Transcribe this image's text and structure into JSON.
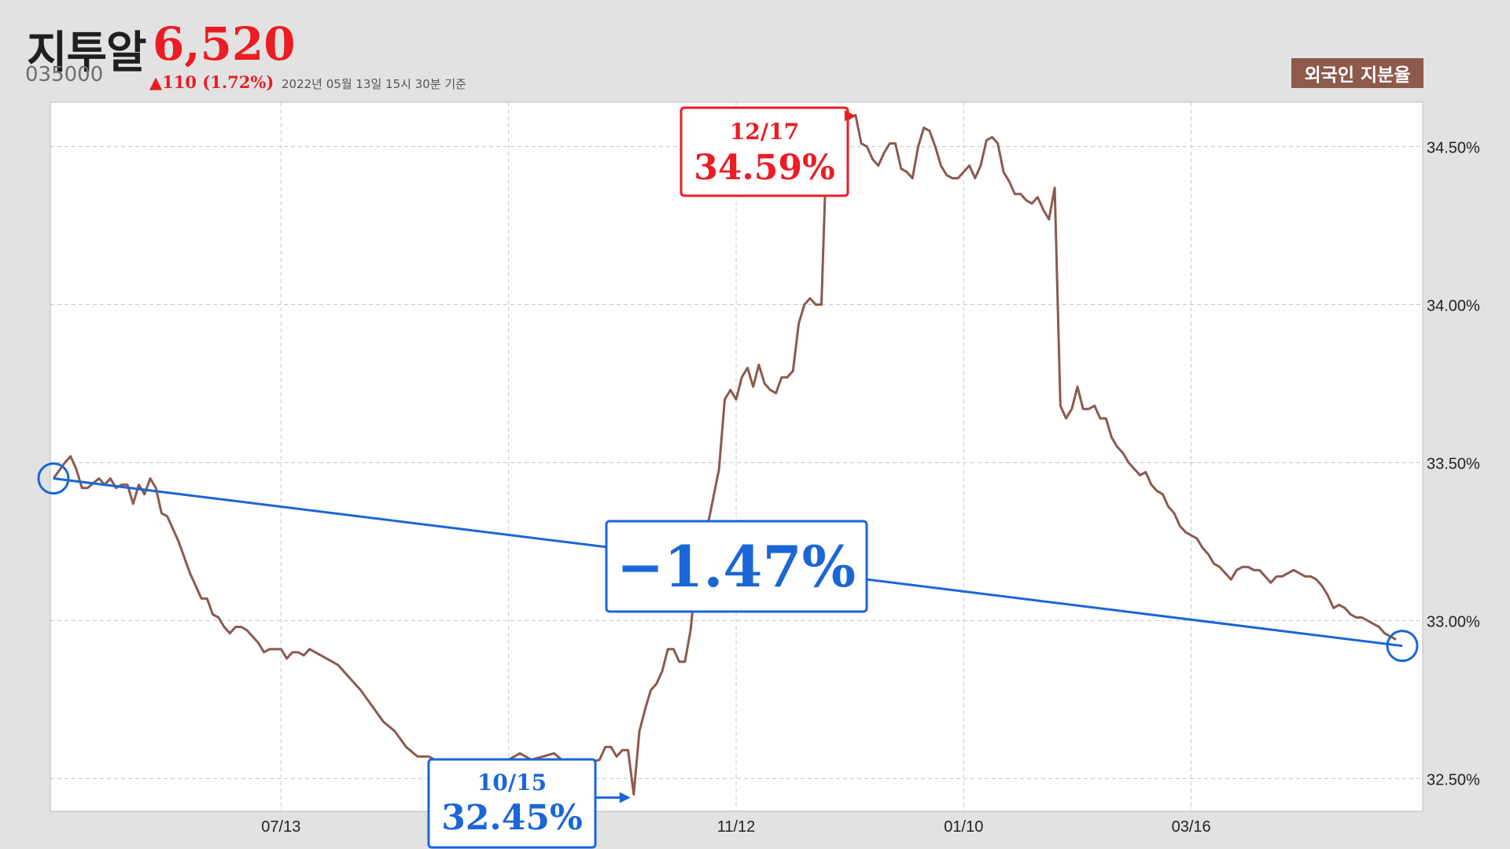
{
  "header": {
    "name": "지투알",
    "price": "6,520",
    "code": "035000",
    "change": "▲110 (1.72%)",
    "date": "2022년 05월 13일 15시 30분 기준",
    "badge": "외국인 지분율"
  },
  "colors": {
    "line": "#8b5a4e",
    "low": "#1a66d6",
    "high": "#ec1c24",
    "grid": "#c8c8c8"
  },
  "annotations": {
    "low": {
      "date": "10/15",
      "value": "32.45%"
    },
    "high": {
      "date": "12/17",
      "value": "34.59%"
    },
    "change": "−1.47%"
  },
  "chart_data": {
    "type": "line",
    "title": "외국인 지분율",
    "x_tick_labels": [
      "07/13",
      "11/12",
      "01/10",
      "03/16"
    ],
    "y_tick_labels": [
      "34.50%",
      "34.00%",
      "33.50%",
      "33.00%",
      "32.50%"
    ],
    "y_ticks": [
      34.5,
      34.0,
      33.5,
      33.0,
      32.5
    ],
    "ylim": [
      32.4,
      34.64
    ],
    "n_points": 241,
    "grid": true,
    "series": [
      {
        "values": [
          [
            0,
            33.45
          ],
          [
            2,
            33.5
          ],
          [
            3,
            33.52
          ],
          [
            4,
            33.48
          ],
          [
            5,
            33.42
          ],
          [
            6,
            33.42
          ],
          [
            8,
            33.45
          ],
          [
            9,
            33.43
          ],
          [
            10,
            33.45
          ],
          [
            11,
            33.42
          ],
          [
            12,
            33.43
          ],
          [
            13,
            33.43
          ],
          [
            14,
            33.37
          ],
          [
            15,
            33.43
          ],
          [
            16,
            33.4
          ],
          [
            17,
            33.45
          ],
          [
            18,
            33.42
          ],
          [
            19,
            33.34
          ],
          [
            20,
            33.33
          ],
          [
            22,
            33.25
          ],
          [
            24,
            33.15
          ],
          [
            26,
            33.07
          ],
          [
            27,
            33.07
          ],
          [
            28,
            33.02
          ],
          [
            29,
            33.01
          ],
          [
            30,
            32.98
          ],
          [
            31,
            32.96
          ],
          [
            32,
            32.98
          ],
          [
            33,
            32.98
          ],
          [
            34,
            32.97
          ],
          [
            35,
            32.95
          ],
          [
            36,
            32.93
          ],
          [
            37,
            32.9
          ],
          [
            38,
            32.91
          ],
          [
            40,
            32.91
          ],
          [
            41,
            32.88
          ],
          [
            42,
            32.9
          ],
          [
            43,
            32.9
          ],
          [
            44,
            32.89
          ],
          [
            45,
            32.91
          ],
          [
            46,
            32.9
          ],
          [
            48,
            32.88
          ],
          [
            50,
            32.86
          ],
          [
            52,
            32.82
          ],
          [
            54,
            32.78
          ],
          [
            56,
            32.73
          ],
          [
            58,
            32.68
          ],
          [
            60,
            32.65
          ],
          [
            62,
            32.6
          ],
          [
            64,
            32.57
          ],
          [
            66,
            32.57
          ],
          [
            68,
            32.55
          ],
          [
            70,
            32.54
          ],
          [
            72,
            32.54
          ],
          [
            74,
            32.55
          ],
          [
            76,
            32.56
          ],
          [
            78,
            32.56
          ],
          [
            80,
            32.56
          ],
          [
            82,
            32.58
          ],
          [
            84,
            32.56
          ],
          [
            86,
            32.57
          ],
          [
            88,
            32.58
          ],
          [
            90,
            32.55
          ],
          [
            92,
            32.54
          ],
          [
            94,
            32.55
          ],
          [
            96,
            32.56
          ],
          [
            97,
            32.6
          ],
          [
            98,
            32.6
          ],
          [
            99,
            32.57
          ],
          [
            100,
            32.59
          ],
          [
            101,
            32.59
          ],
          [
            102,
            32.45
          ],
          [
            103,
            32.65
          ],
          [
            104,
            32.72
          ],
          [
            105,
            32.78
          ],
          [
            106,
            32.8
          ],
          [
            107,
            32.84
          ],
          [
            108,
            32.91
          ],
          [
            109,
            32.91
          ],
          [
            110,
            32.87
          ],
          [
            111,
            32.87
          ],
          [
            112,
            32.97
          ],
          [
            113,
            33.15
          ],
          [
            115,
            33.3
          ],
          [
            117,
            33.48
          ],
          [
            118,
            33.7
          ],
          [
            119,
            33.73
          ],
          [
            120,
            33.7
          ],
          [
            121,
            33.77
          ],
          [
            122,
            33.8
          ],
          [
            123,
            33.74
          ],
          [
            124,
            33.81
          ],
          [
            125,
            33.75
          ],
          [
            126,
            33.73
          ],
          [
            127,
            33.72
          ],
          [
            128,
            33.77
          ],
          [
            129,
            33.77
          ],
          [
            130,
            33.79
          ],
          [
            131,
            33.94
          ],
          [
            132,
            34.0
          ],
          [
            133,
            34.02
          ],
          [
            134,
            34.0
          ],
          [
            135,
            34.0
          ],
          [
            136,
            34.55
          ],
          [
            137,
            34.52
          ],
          [
            138,
            34.58
          ],
          [
            139,
            34.58
          ],
          [
            140,
            34.59
          ],
          [
            141,
            34.6
          ],
          [
            142,
            34.51
          ],
          [
            143,
            34.5
          ],
          [
            144,
            34.46
          ],
          [
            145,
            34.44
          ],
          [
            146,
            34.48
          ],
          [
            147,
            34.51
          ],
          [
            148,
            34.51
          ],
          [
            149,
            34.43
          ],
          [
            150,
            34.42
          ],
          [
            151,
            34.4
          ],
          [
            152,
            34.5
          ],
          [
            153,
            34.56
          ],
          [
            154,
            34.55
          ],
          [
            155,
            34.5
          ],
          [
            156,
            34.44
          ],
          [
            157,
            34.41
          ],
          [
            158,
            34.4
          ],
          [
            159,
            34.4
          ],
          [
            160,
            34.42
          ],
          [
            161,
            34.44
          ],
          [
            162,
            34.4
          ],
          [
            163,
            34.44
          ],
          [
            164,
            34.52
          ],
          [
            165,
            34.53
          ],
          [
            166,
            34.51
          ],
          [
            167,
            34.42
          ],
          [
            168,
            34.39
          ],
          [
            169,
            34.35
          ],
          [
            170,
            34.35
          ],
          [
            171,
            34.33
          ],
          [
            172,
            34.32
          ],
          [
            173,
            34.34
          ],
          [
            174,
            34.3
          ],
          [
            175,
            34.27
          ],
          [
            176,
            34.37
          ],
          [
            177,
            33.68
          ],
          [
            178,
            33.64
          ],
          [
            179,
            33.67
          ],
          [
            180,
            33.74
          ],
          [
            181,
            33.67
          ],
          [
            182,
            33.67
          ],
          [
            183,
            33.68
          ],
          [
            184,
            33.64
          ],
          [
            185,
            33.64
          ],
          [
            186,
            33.58
          ],
          [
            187,
            33.55
          ],
          [
            188,
            33.53
          ],
          [
            189,
            33.5
          ],
          [
            190,
            33.48
          ],
          [
            191,
            33.46
          ],
          [
            192,
            33.47
          ],
          [
            193,
            33.43
          ],
          [
            194,
            33.41
          ],
          [
            195,
            33.4
          ],
          [
            196,
            33.36
          ],
          [
            197,
            33.34
          ],
          [
            198,
            33.3
          ],
          [
            199,
            33.28
          ],
          [
            200,
            33.27
          ],
          [
            201,
            33.26
          ],
          [
            202,
            33.23
          ],
          [
            203,
            33.21
          ],
          [
            204,
            33.18
          ],
          [
            205,
            33.17
          ],
          [
            206,
            33.15
          ],
          [
            207,
            33.13
          ],
          [
            208,
            33.16
          ],
          [
            209,
            33.17
          ],
          [
            210,
            33.17
          ],
          [
            211,
            33.16
          ],
          [
            212,
            33.16
          ],
          [
            213,
            33.14
          ],
          [
            214,
            33.12
          ],
          [
            215,
            33.14
          ],
          [
            216,
            33.14
          ],
          [
            217,
            33.15
          ],
          [
            218,
            33.16
          ],
          [
            219,
            33.15
          ],
          [
            220,
            33.14
          ],
          [
            221,
            33.14
          ],
          [
            222,
            33.13
          ],
          [
            223,
            33.11
          ],
          [
            224,
            33.08
          ],
          [
            225,
            33.04
          ],
          [
            226,
            33.05
          ],
          [
            227,
            33.04
          ],
          [
            228,
            33.02
          ],
          [
            229,
            33.01
          ],
          [
            230,
            33.01
          ],
          [
            231,
            33.0
          ],
          [
            232,
            32.99
          ],
          [
            233,
            32.98
          ],
          [
            234,
            32.96
          ],
          [
            235,
            32.95
          ],
          [
            236,
            32.94
          ]
        ]
      }
    ]
  }
}
